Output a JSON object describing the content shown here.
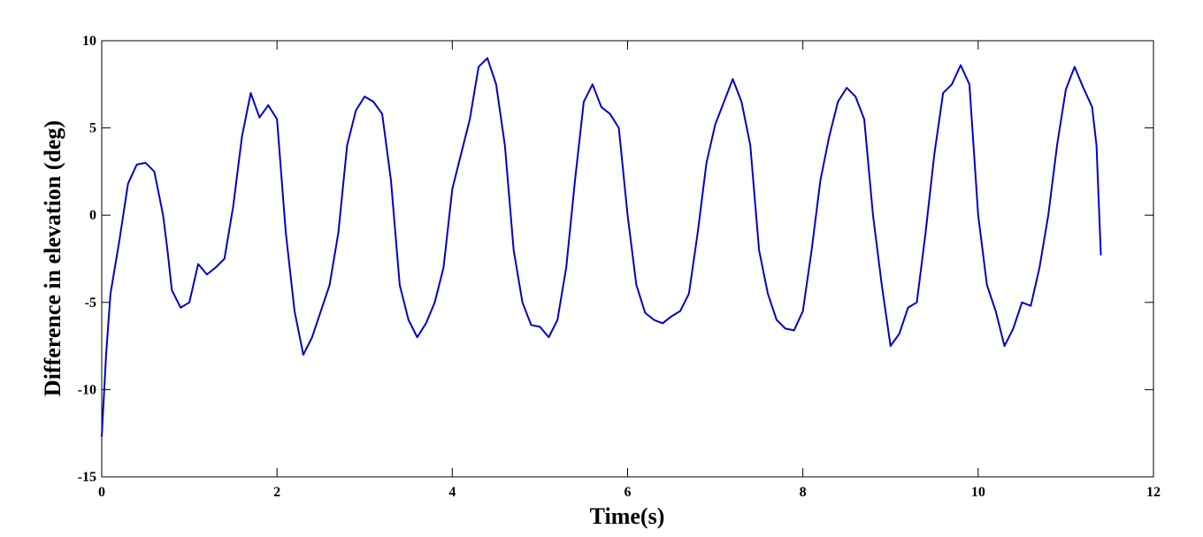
{
  "chart_data": {
    "type": "line",
    "xlabel": "Time(s)",
    "ylabel": "Difference in elevation (deg)",
    "x": [
      0,
      0.05,
      0.1,
      0.2,
      0.3,
      0.4,
      0.5,
      0.6,
      0.7,
      0.75,
      0.8,
      0.9,
      1.0,
      1.1,
      1.2,
      1.3,
      1.4,
      1.5,
      1.6,
      1.7,
      1.8,
      1.9,
      2.0,
      2.1,
      2.2,
      2.3,
      2.4,
      2.5,
      2.6,
      2.7,
      2.8,
      2.9,
      3.0,
      3.1,
      3.2,
      3.3,
      3.4,
      3.5,
      3.6,
      3.7,
      3.8,
      3.9,
      4.0,
      4.1,
      4.2,
      4.3,
      4.4,
      4.5,
      4.6,
      4.7,
      4.8,
      4.9,
      5.0,
      5.1,
      5.2,
      5.3,
      5.4,
      5.5,
      5.6,
      5.7,
      5.8,
      5.9,
      6.0,
      6.1,
      6.2,
      6.3,
      6.4,
      6.5,
      6.6,
      6.7,
      6.8,
      6.9,
      7.0,
      7.1,
      7.2,
      7.3,
      7.4,
      7.5,
      7.6,
      7.7,
      7.8,
      7.9,
      8.0,
      8.1,
      8.2,
      8.3,
      8.4,
      8.5,
      8.6,
      8.7,
      8.8,
      8.9,
      9.0,
      9.1,
      9.2,
      9.3,
      9.4,
      9.5,
      9.6,
      9.7,
      9.8,
      9.9,
      10.0,
      10.1,
      10.2,
      10.3,
      10.4,
      10.5,
      10.6,
      10.7,
      10.8,
      10.9,
      11.0,
      11.1,
      11.2,
      11.3,
      11.35,
      11.4
    ],
    "values": [
      -12.7,
      -8,
      -4.5,
      -1.5,
      1.8,
      2.9,
      3,
      2.5,
      0,
      -2,
      -4.3,
      -5.3,
      -5,
      -2.8,
      -3.4,
      -3,
      -2.5,
      0.5,
      4.5,
      7,
      5.6,
      6.3,
      5.5,
      -1,
      -5.5,
      -8,
      -7,
      -5.5,
      -4,
      -1,
      4,
      6,
      6.8,
      6.5,
      5.8,
      2,
      -4,
      -6,
      -7,
      -6.2,
      -5,
      -3,
      1.5,
      3.5,
      5.5,
      8.5,
      9,
      7.5,
      4,
      -2,
      -5,
      -6.3,
      -6.4,
      -7,
      -6,
      -3,
      2,
      6.5,
      7.5,
      6.2,
      5.8,
      5,
      0,
      -4,
      -5.6,
      -6,
      -6.2,
      -5.8,
      -5.5,
      -4.5,
      -1,
      3,
      5.2,
      6.5,
      7.8,
      6.5,
      4,
      -2,
      -4.5,
      -6,
      -6.5,
      -6.6,
      -5.5,
      -2,
      2,
      4.5,
      6.5,
      7.3,
      6.8,
      5.5,
      0,
      -4,
      -7.5,
      -6.8,
      -5.3,
      -5,
      -1,
      3.5,
      7,
      7.5,
      8.6,
      7.5,
      0,
      -4,
      -5.5,
      -7.5,
      -6.5,
      -5,
      -5.2,
      -3,
      0,
      4,
      7.2,
      8.5,
      7.3,
      6.2,
      4,
      -2.3
    ],
    "color": "#0000cc",
    "xlim": [
      0,
      12
    ],
    "xticks": [
      0,
      2,
      4,
      6,
      8,
      10,
      12
    ],
    "ylim": [
      -15,
      10
    ],
    "yticks": [
      -15,
      -10,
      -5,
      0,
      5,
      10
    ]
  }
}
